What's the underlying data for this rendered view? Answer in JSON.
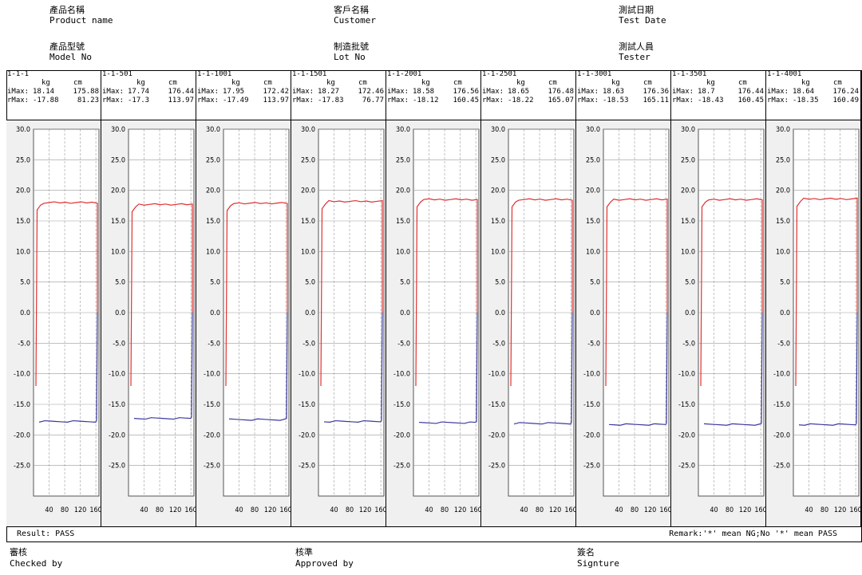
{
  "header": {
    "product_name_zh": "產品名稱",
    "product_name_en": "Product name",
    "model_no_zh": "產品型號",
    "model_no_en": "Model No",
    "customer_zh": "客戶名稱",
    "customer_en": "Customer",
    "lot_no_zh": "制造批號",
    "lot_no_en": "Lot No",
    "test_date_zh": "測試日期",
    "test_date_en": "Test Date",
    "tester_zh": "測試人員",
    "tester_en": "Tester"
  },
  "unit_kg": "kg",
  "unit_cm": "cm",
  "imax_label": "iMax:",
  "rmax_label": "rMax:",
  "footer": {
    "result": "Result:  PASS",
    "remark": "Remark:'*' mean NG;No '*' mean PASS"
  },
  "signatures": {
    "checked_zh": "審核",
    "checked_en": "Checked by",
    "approved_zh": "核準",
    "approved_en": "Approved by",
    "sign_zh": "簽名",
    "sign_en": "Signture"
  },
  "colors": {
    "upper": "#e03030",
    "lower": "#3a3aa0",
    "grid": "#9a9a9a",
    "plot_bg": "#ffffff",
    "panel_bg": "#f0f0f0"
  },
  "chart_data": [
    {
      "id": "1-1-1",
      "type": "line",
      "imax_kg": "18.14",
      "imax_cm": "175.88",
      "rmax_kg": "-17.88",
      "rmax_cm": "81.23",
      "upper": 18.0,
      "lower": -17.8,
      "x_end": 168,
      "ylim": [
        -30,
        30
      ],
      "yticks": [
        "30.0",
        "25.0",
        "20.0",
        "15.0",
        "10.0",
        "5.0",
        "0.0",
        "-5.0",
        "-10.0",
        "-15.0",
        "-20.0",
        "-25.0"
      ],
      "xticks": [
        "40",
        "80",
        "120",
        "160"
      ]
    },
    {
      "id": "1-1-501",
      "type": "line",
      "imax_kg": "17.74",
      "imax_cm": "176.44",
      "rmax_kg": "-17.3",
      "rmax_cm": "113.97",
      "upper": 17.7,
      "lower": -17.3,
      "x_end": 168,
      "ylim": [
        -30,
        30
      ],
      "yticks": [
        "30.0",
        "25.0",
        "20.0",
        "15.0",
        "10.0",
        "5.0",
        "0.0",
        "-5.0",
        "-10.0",
        "-15.0",
        "-20.0",
        "-25.0"
      ],
      "xticks": [
        "40",
        "80",
        "120",
        "160"
      ]
    },
    {
      "id": "1-1-1001",
      "type": "line",
      "imax_kg": "17.95",
      "imax_cm": "172.42",
      "rmax_kg": "-17.49",
      "rmax_cm": "113.97",
      "upper": 17.9,
      "lower": -17.5,
      "x_end": 168,
      "ylim": [
        -30,
        30
      ],
      "yticks": [
        "30.0",
        "25.0",
        "20.0",
        "15.0",
        "10.0",
        "5.0",
        "0.0",
        "-5.0",
        "-10.0",
        "-15.0",
        "-20.0",
        "-25.0"
      ],
      "xticks": [
        "40",
        "80",
        "120",
        "160"
      ]
    },
    {
      "id": "1-1-1501",
      "type": "line",
      "imax_kg": "18.27",
      "imax_cm": "172.46",
      "rmax_kg": "-17.83",
      "rmax_cm": "76.77",
      "upper": 18.2,
      "lower": -17.8,
      "x_end": 168,
      "ylim": [
        -30,
        30
      ],
      "yticks": [
        "30.0",
        "25.0",
        "20.0",
        "15.0",
        "10.0",
        "5.0",
        "0.0",
        "-5.0",
        "-10.0",
        "-15.0",
        "-20.0",
        "-25.0"
      ],
      "xticks": [
        "40",
        "80",
        "120",
        "160"
      ]
    },
    {
      "id": "1-1-2001",
      "type": "line",
      "imax_kg": "18.58",
      "imax_cm": "176.56",
      "rmax_kg": "-18.12",
      "rmax_cm": "160.45",
      "upper": 18.5,
      "lower": -18.0,
      "x_end": 168,
      "ylim": [
        -30,
        30
      ],
      "yticks": [
        "30.0",
        "25.0",
        "20.0",
        "15.0",
        "10.0",
        "5.0",
        "0.0",
        "-5.0",
        "-10.0",
        "-15.0",
        "-20.0",
        "-25.0"
      ],
      "xticks": [
        "40",
        "80",
        "120",
        "160"
      ]
    },
    {
      "id": "1-1-2501",
      "type": "line",
      "imax_kg": "18.65",
      "imax_cm": "176.48",
      "rmax_kg": "-18.22",
      "rmax_cm": "165.07",
      "upper": 18.5,
      "lower": -18.1,
      "x_end": 168,
      "ylim": [
        -30,
        30
      ],
      "yticks": [
        "30.0",
        "25.0",
        "20.0",
        "15.0",
        "10.0",
        "5.0",
        "0.0",
        "-5.0",
        "-10.0",
        "-15.0",
        "-20.0",
        "-25.0"
      ],
      "xticks": [
        "40",
        "80",
        "120",
        "160"
      ]
    },
    {
      "id": "1-1-3001",
      "type": "line",
      "imax_kg": "18.63",
      "imax_cm": "176.36",
      "rmax_kg": "-18.53",
      "rmax_cm": "165.11",
      "upper": 18.5,
      "lower": -18.3,
      "x_end": 168,
      "ylim": [
        -30,
        30
      ],
      "yticks": [
        "30.0",
        "25.0",
        "20.0",
        "15.0",
        "10.0",
        "5.0",
        "0.0",
        "-5.0",
        "-10.0",
        "-15.0",
        "-20.0",
        "-25.0"
      ],
      "xticks": [
        "40",
        "80",
        "120",
        "160"
      ]
    },
    {
      "id": "1-1-3501",
      "type": "line",
      "imax_kg": "18.7",
      "imax_cm": "176.44",
      "rmax_kg": "-18.43",
      "rmax_cm": "160.45",
      "upper": 18.5,
      "lower": -18.3,
      "x_end": 168,
      "ylim": [
        -30,
        30
      ],
      "yticks": [
        "30.0",
        "25.0",
        "20.0",
        "15.0",
        "10.0",
        "5.0",
        "0.0",
        "-5.0",
        "-10.0",
        "-15.0",
        "-20.0",
        "-25.0"
      ],
      "xticks": [
        "40",
        "80",
        "120",
        "160"
      ]
    },
    {
      "id": "1-1-4001",
      "type": "line",
      "imax_kg": "18.64",
      "imax_cm": "176.24",
      "rmax_kg": "-18.35",
      "rmax_cm": "160.49",
      "upper": 18.6,
      "lower": -18.3,
      "x_end": 168,
      "ylim": [
        -30,
        30
      ],
      "yticks": [
        "30.0",
        "25.0",
        "20.0",
        "15.0",
        "10.0",
        "5.0",
        "0.0",
        "-5.0",
        "-10.0",
        "-15.0",
        "-20.0",
        "-25.0"
      ],
      "xticks": [
        "40",
        "80",
        "120",
        "160"
      ]
    }
  ]
}
